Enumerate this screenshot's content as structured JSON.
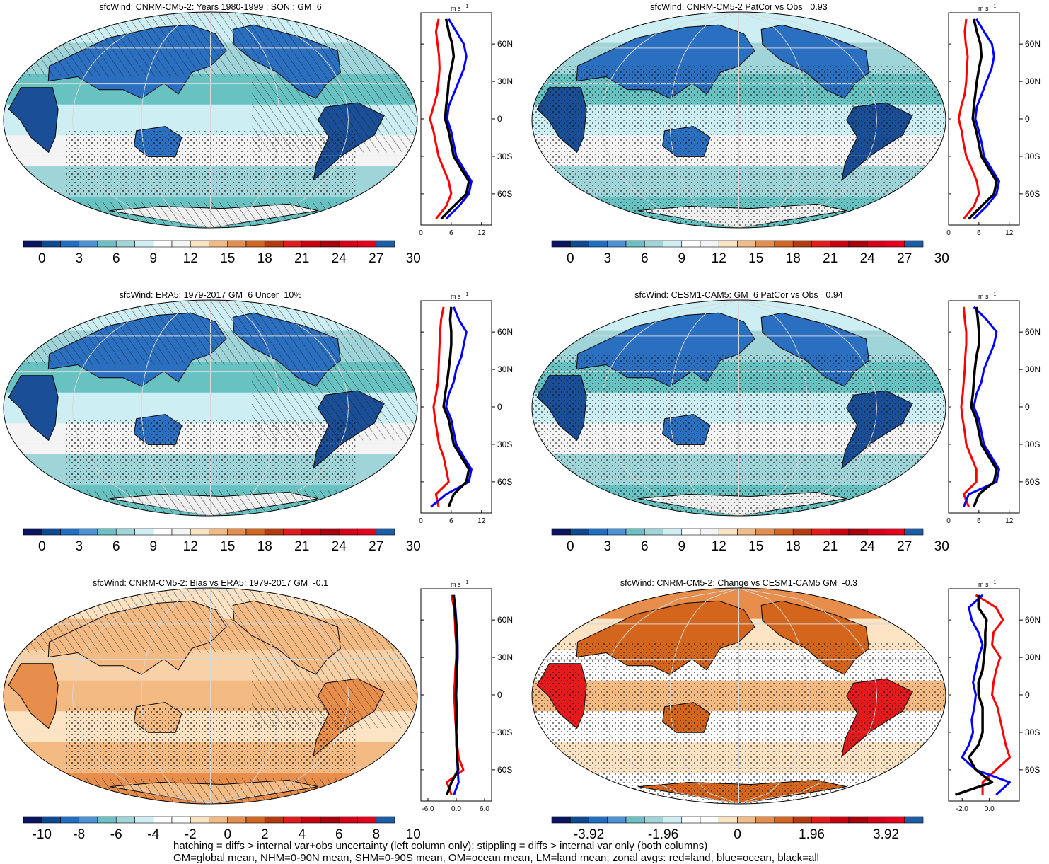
{
  "panels": [
    {
      "title": "sfcWind: CNRM-CM5-2: Years 1980-1999 : SON : GM=6",
      "colorbar_labels": [
        "0",
        "3",
        "6",
        "9",
        "12",
        "15",
        "18",
        "21",
        "24",
        "27",
        "30"
      ],
      "zonal_xlabels": [
        "0",
        "6",
        "12"
      ],
      "zonal_xlim": [
        0,
        14
      ],
      "hatching": true,
      "stippling": "oceans",
      "map_style": "clim"
    },
    {
      "title": "sfcWind: CNRM-CM5-2 PatCor vs Obs =0.93",
      "colorbar_labels": [
        "0",
        "3",
        "6",
        "9",
        "12",
        "15",
        "18",
        "21",
        "24",
        "27",
        "30"
      ],
      "zonal_xlabels": [
        "0",
        "6",
        "12"
      ],
      "zonal_xlim": [
        0,
        14
      ],
      "hatching": false,
      "stippling": "dense",
      "map_style": "clim"
    },
    {
      "title": "sfcWind: ERA5: 1979-2017 GM=6 Uncer=10%",
      "colorbar_labels": [
        "0",
        "3",
        "6",
        "9",
        "12",
        "15",
        "18",
        "21",
        "24",
        "27",
        "30"
      ],
      "zonal_xlabels": [
        "0",
        "6",
        "12"
      ],
      "zonal_xlim": [
        0,
        14
      ],
      "hatching": true,
      "stippling": "oceans",
      "map_style": "clim"
    },
    {
      "title": "sfcWind: CESM1-CAM5: GM=6 PatCor vs Obs =0.94",
      "colorbar_labels": [
        "0",
        "3",
        "6",
        "9",
        "12",
        "15",
        "18",
        "21",
        "24",
        "27",
        "30"
      ],
      "zonal_xlabels": [
        "0",
        "6",
        "12"
      ],
      "zonal_xlim": [
        0,
        14
      ],
      "hatching": false,
      "stippling": "dense",
      "map_style": "clim"
    },
    {
      "title": "sfcWind: CNRM-CM5-2: Bias vs ERA5: 1979-2017  GM=-0.1",
      "colorbar_labels": [
        "-10",
        "-8",
        "-6",
        "-4",
        "-2",
        "0",
        "2",
        "4",
        "6",
        "8",
        "10"
      ],
      "zonal_xlabels": [
        "-6.0",
        "0.0",
        "6.0"
      ],
      "zonal_xlim": [
        -7.5,
        7.5
      ],
      "hatching": true,
      "stippling": "oceans",
      "map_style": "bias"
    },
    {
      "title": "sfcWind: CNRM-CM5-2: Change vs CESM1-CAM5 GM=-0.3",
      "colorbar_labels": [
        "-3.92",
        "-1.96",
        "0",
        "1.96",
        "3.92"
      ],
      "zonal_xlabels": [
        "-2.0",
        "0.0"
      ],
      "zonal_xlim": [
        -3.0,
        2.2
      ],
      "hatching": false,
      "stippling": "dense",
      "map_style": "change"
    }
  ],
  "zonal_units": "m s",
  "zonal_units_exponent": "-1",
  "lat_labels": [
    "60N",
    "30N",
    "0",
    "30S",
    "60S"
  ],
  "colors": {
    "land": "#ff0000",
    "ocean": "#0000ff",
    "all": "#000000",
    "clim_colorbar": [
      "#0a1562",
      "#0c4a94",
      "#1f6fc4",
      "#4a93d9",
      "#67c2c1",
      "#9fd4d9",
      "#cdeef2",
      "#ffffff",
      "#f4f4f4",
      "#fbe3c4",
      "#f3ba84",
      "#e88e4c",
      "#d4651c",
      "#b53c0a",
      "#e41a1c",
      "#c9000a",
      "#a8000d",
      "#d7001a",
      "#e8001f",
      "#1a5fa8"
    ],
    "diff_colorbar": [
      "#0a1562",
      "#0c4a94",
      "#1f6fc4",
      "#4a93d9",
      "#67c2c1",
      "#9fd4d9",
      "#cdeef2",
      "#ffffff",
      "#ffffff",
      "#fbe3c4",
      "#f3ba84",
      "#e88e4c",
      "#d4651c",
      "#b53c0a",
      "#e41a1c",
      "#c9000a",
      "#a8000d",
      "#d7001a",
      "#e8001f",
      "#1a5fa8"
    ]
  },
  "chart_data": [
    {
      "type": "line",
      "title": "sfcWind: CNRM-CM5-2: Years 1980-1999 : SON : GM=6",
      "series": [
        {
          "name": "land",
          "lat": [
            80,
            70,
            60,
            50,
            40,
            30,
            20,
            10,
            0,
            -10,
            -20,
            -30,
            -40,
            -50,
            -60,
            -70,
            -80
          ],
          "values": [
            3.5,
            3.0,
            3.3,
            3.6,
            3.7,
            3.5,
            3.2,
            2.5,
            1.8,
            2.5,
            3.0,
            3.5,
            4.5,
            5.5,
            6.0,
            5.0,
            3.0
          ]
        },
        {
          "name": "ocean",
          "lat": [
            80,
            70,
            60,
            50,
            40,
            30,
            20,
            10,
            0,
            -10,
            -20,
            -30,
            -40,
            -50,
            -60,
            -70,
            -80
          ],
          "values": [
            5.5,
            7.0,
            8.5,
            9.0,
            8.5,
            7.5,
            6.5,
            5.5,
            5.2,
            6.0,
            6.5,
            7.0,
            8.5,
            10.0,
            9.5,
            7.5,
            5.0
          ]
        },
        {
          "name": "all",
          "lat": [
            80,
            70,
            60,
            50,
            40,
            30,
            20,
            10,
            0,
            -10,
            -20,
            -30,
            -40,
            -50,
            -60,
            -70,
            -80
          ],
          "values": [
            5.0,
            5.5,
            6.2,
            6.5,
            6.0,
            5.5,
            5.3,
            5.0,
            4.8,
            5.5,
            6.0,
            6.5,
            8.0,
            9.5,
            9.0,
            6.5,
            4.0
          ]
        }
      ]
    },
    {
      "type": "line",
      "title": "sfcWind: CNRM-CM5-2 PatCor vs Obs =0.93",
      "series": [
        {
          "name": "land",
          "lat": [
            80,
            70,
            60,
            50,
            40,
            30,
            20,
            10,
            0,
            -10,
            -20,
            -30,
            -40,
            -50,
            -60,
            -70,
            -80
          ],
          "values": [
            3.5,
            3.2,
            3.4,
            3.8,
            3.6,
            3.5,
            3.2,
            2.5,
            2.0,
            2.6,
            3.0,
            3.5,
            4.6,
            5.6,
            6.0,
            5.0,
            3.0
          ]
        },
        {
          "name": "ocean",
          "lat": [
            80,
            70,
            60,
            50,
            40,
            30,
            20,
            10,
            0,
            -10,
            -20,
            -30,
            -40,
            -50,
            -60,
            -70,
            -80
          ],
          "values": [
            5.5,
            7.0,
            8.6,
            9.0,
            8.5,
            7.5,
            6.6,
            5.6,
            5.3,
            6.0,
            6.6,
            7.0,
            8.5,
            10.0,
            9.5,
            7.5,
            5.0
          ]
        },
        {
          "name": "all",
          "lat": [
            80,
            70,
            60,
            50,
            40,
            30,
            20,
            10,
            0,
            -10,
            -20,
            -30,
            -40,
            -50,
            -60,
            -70,
            -80
          ],
          "values": [
            5.0,
            5.6,
            6.3,
            6.5,
            6.0,
            5.6,
            5.3,
            5.0,
            4.8,
            5.5,
            6.0,
            6.5,
            8.0,
            9.5,
            9.0,
            6.5,
            4.0
          ]
        }
      ]
    },
    {
      "type": "line",
      "title": "sfcWind: ERA5: 1979-2017 GM=6 Uncer=10%",
      "series": [
        {
          "name": "land",
          "lat": [
            80,
            70,
            60,
            50,
            40,
            30,
            20,
            10,
            0,
            -10,
            -20,
            -30,
            -40,
            -50,
            -60,
            -70,
            -80
          ],
          "values": [
            4.5,
            4.0,
            3.8,
            3.7,
            3.6,
            3.5,
            3.4,
            3.0,
            2.5,
            2.8,
            3.2,
            3.6,
            4.5,
            5.0,
            5.5,
            3.0,
            3.5
          ]
        },
        {
          "name": "ocean",
          "lat": [
            80,
            70,
            60,
            50,
            40,
            30,
            20,
            10,
            0,
            -10,
            -20,
            -30,
            -40,
            -50,
            -60,
            -70,
            -80
          ],
          "values": [
            6.5,
            7.5,
            9.0,
            8.5,
            8.0,
            7.0,
            6.5,
            5.5,
            5.0,
            6.0,
            6.5,
            7.0,
            8.5,
            10.0,
            9.5,
            5.0,
            2.0
          ]
        },
        {
          "name": "all",
          "lat": [
            80,
            70,
            60,
            50,
            40,
            30,
            20,
            10,
            0,
            -10,
            -20,
            -30,
            -40,
            -50,
            -60,
            -70,
            -80
          ],
          "values": [
            6.0,
            5.8,
            6.0,
            6.0,
            5.8,
            5.5,
            5.2,
            4.8,
            4.5,
            5.5,
            6.0,
            6.5,
            8.0,
            9.5,
            9.0,
            6.5,
            5.5
          ]
        }
      ]
    },
    {
      "type": "line",
      "title": "sfcWind: CESM1-CAM5: GM=6 PatCor vs Obs =0.94",
      "series": [
        {
          "name": "land",
          "lat": [
            80,
            70,
            60,
            50,
            40,
            30,
            20,
            10,
            0,
            -10,
            -20,
            -30,
            -40,
            -50,
            -60,
            -70,
            -80
          ],
          "values": [
            3.0,
            3.2,
            3.5,
            3.5,
            3.3,
            3.2,
            3.0,
            2.8,
            2.5,
            2.8,
            3.2,
            3.5,
            4.5,
            5.5,
            5.5,
            3.0,
            4.0
          ]
        },
        {
          "name": "ocean",
          "lat": [
            80,
            70,
            60,
            50,
            40,
            30,
            20,
            10,
            0,
            -10,
            -20,
            -30,
            -40,
            -50,
            -60,
            -70,
            -80
          ],
          "values": [
            5.0,
            7.5,
            9.5,
            9.0,
            8.0,
            7.0,
            6.5,
            5.5,
            5.0,
            6.0,
            6.5,
            7.0,
            8.5,
            10.0,
            9.5,
            4.0,
            3.0
          ]
        },
        {
          "name": "all",
          "lat": [
            80,
            70,
            60,
            50,
            40,
            30,
            20,
            10,
            0,
            -10,
            -20,
            -30,
            -40,
            -50,
            -60,
            -70,
            -80
          ],
          "values": [
            5.5,
            5.8,
            6.0,
            6.0,
            5.5,
            5.2,
            5.0,
            4.8,
            4.5,
            5.5,
            6.0,
            6.5,
            8.0,
            9.5,
            9.0,
            6.0,
            5.0
          ]
        }
      ]
    },
    {
      "type": "line",
      "title": "sfcWind: CNRM-CM5-2: Bias vs ERA5: 1979-2017  GM=-0.1",
      "series": [
        {
          "name": "land",
          "lat": [
            80,
            70,
            60,
            50,
            40,
            30,
            20,
            10,
            0,
            -10,
            -20,
            -30,
            -40,
            -50,
            -60,
            -70,
            -80
          ],
          "values": [
            -1.0,
            -0.5,
            -0.3,
            -0.2,
            0.0,
            0.0,
            -0.2,
            -0.3,
            -0.5,
            -0.3,
            -0.2,
            0.0,
            0.2,
            0.5,
            1.5,
            -2.0,
            -1.0
          ]
        },
        {
          "name": "ocean",
          "lat": [
            80,
            70,
            60,
            50,
            40,
            30,
            20,
            10,
            0,
            -10,
            -20,
            -30,
            -40,
            -50,
            -60,
            -70,
            -80
          ],
          "values": [
            -0.5,
            -0.2,
            0.0,
            0.2,
            0.3,
            0.3,
            0.2,
            0.1,
            0.0,
            0.1,
            0.1,
            0.0,
            0.0,
            0.2,
            0.3,
            0.5,
            -0.5
          ]
        },
        {
          "name": "all",
          "lat": [
            80,
            70,
            60,
            50,
            40,
            30,
            20,
            10,
            0,
            -10,
            -20,
            -30,
            -40,
            -50,
            -60,
            -70,
            -80
          ],
          "values": [
            -0.6,
            -0.3,
            -0.1,
            0.0,
            0.1,
            0.1,
            0.0,
            0.0,
            -0.1,
            0.0,
            0.0,
            0.0,
            0.1,
            0.2,
            0.4,
            -1.0,
            -2.0
          ]
        }
      ]
    },
    {
      "type": "line",
      "title": "sfcWind: CNRM-CM5-2: Change vs CESM1-CAM5 GM=-0.3",
      "series": [
        {
          "name": "land",
          "lat": [
            80,
            70,
            60,
            50,
            40,
            30,
            20,
            10,
            0,
            -10,
            -20,
            -30,
            -40,
            -50,
            -60,
            -70,
            -80
          ],
          "values": [
            -1.0,
            0.5,
            1.0,
            0.3,
            0.2,
            0.8,
            0.5,
            0.3,
            0.2,
            0.6,
            0.8,
            1.0,
            1.2,
            1.5,
            0.5,
            -0.5,
            -0.5
          ]
        },
        {
          "name": "ocean",
          "lat": [
            80,
            70,
            60,
            50,
            40,
            30,
            20,
            10,
            0,
            -10,
            -20,
            -30,
            -40,
            -50,
            -60,
            -70,
            -80
          ],
          "values": [
            -0.5,
            -1.5,
            -1.3,
            -0.8,
            -0.5,
            -0.8,
            -1.0,
            -1.2,
            -1.0,
            -1.1,
            -1.3,
            -1.2,
            -1.5,
            -2.0,
            -1.0,
            1.5,
            0.5
          ]
        },
        {
          "name": "all",
          "lat": [
            80,
            70,
            60,
            50,
            40,
            30,
            20,
            10,
            0,
            -10,
            -20,
            -30,
            -40,
            -50,
            -60,
            -70,
            -80
          ],
          "values": [
            -0.8,
            -0.8,
            -0.2,
            -0.3,
            -0.3,
            -0.4,
            -0.5,
            -0.8,
            -0.8,
            -0.5,
            -0.5,
            -0.5,
            -0.8,
            -1.5,
            -1.0,
            0.2,
            -2.5
          ]
        }
      ]
    }
  ],
  "footnote_lines": [
    "hatching = diffs > internal var+obs uncertainty (left column only); stippling = diffs > internal var only (both columns)",
    "GM=global mean, NHM=0-90N mean, SHM=0-90S mean, OM=ocean mean, LM=land mean; zonal avgs: red=land, blue=ocean, black=all"
  ]
}
